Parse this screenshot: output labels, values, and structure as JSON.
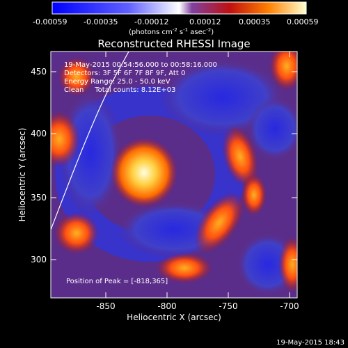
{
  "colorbar": {
    "ticks": [
      "-0.00059",
      "-0.00035",
      "-0.00012",
      "0.00012",
      "0.00035",
      "0.00059"
    ],
    "units_line": "(photons cm",
    "units_exp1": "-2",
    "units_mid": " s",
    "units_exp2": "-1",
    "units_end": " asec",
    "units_exp3": "-2",
    "units_close": ")"
  },
  "plot": {
    "title": "Reconstructed RHESSI Image",
    "xlabel": "Heliocentric X (arcsec)",
    "ylabel": "Heliocentric Y (arcsec)",
    "xticks": [
      "-850",
      "-800",
      "-750",
      "-700"
    ],
    "yticks": [
      "450",
      "400",
      "350",
      "300"
    ],
    "info": [
      "19-May-2015 00:54:56.000 to 00:58:16.000",
      "Detectors: 3F 5F 6F 7F 8F 9F, Att 0",
      "Energy Range: 25.0 - 50.0 keV",
      "Clean     Total counts: 8.12E+03"
    ],
    "peak": "Position of Peak = [-818,365]"
  },
  "footer": {
    "timestamp": "19-May-2015 18:43"
  },
  "colors": {
    "background": "#5b2d8a",
    "ring": "#3a3ad8",
    "hot": "#ffe070",
    "mid": "#e8401a"
  }
}
